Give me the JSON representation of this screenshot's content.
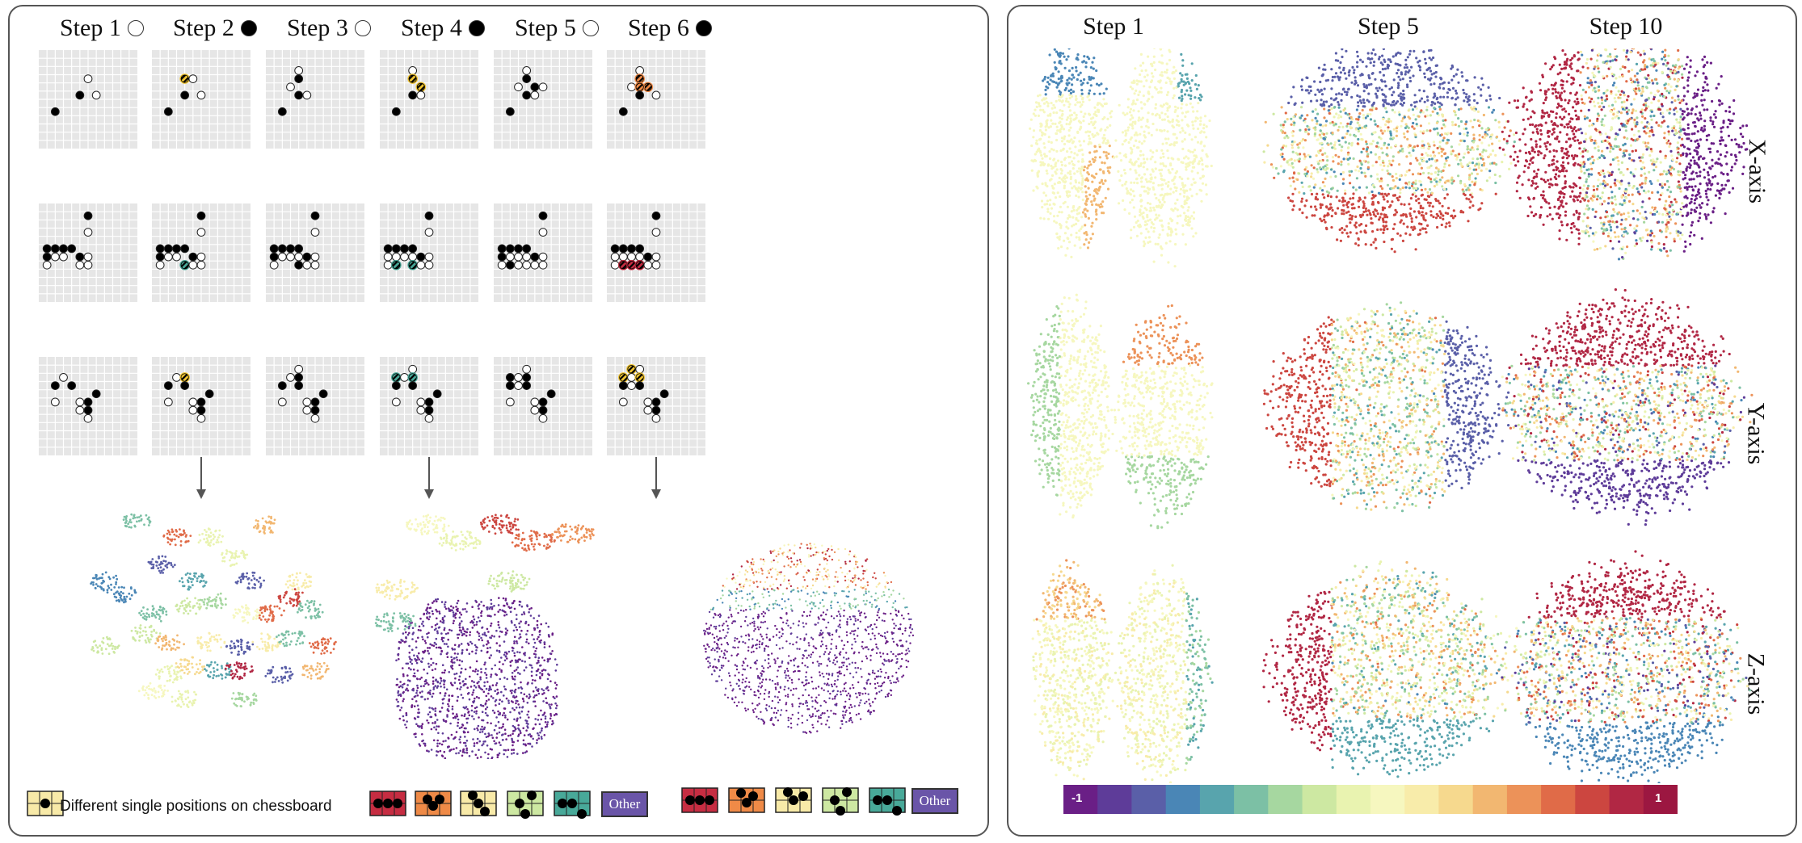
{
  "left": {
    "steps": [
      {
        "label": "Step 1",
        "dot": "white"
      },
      {
        "label": "Step 2",
        "dot": "black"
      },
      {
        "label": "Step 3",
        "dot": "white"
      },
      {
        "label": "Step 4",
        "dot": "black"
      },
      {
        "label": "Step 5",
        "dot": "white"
      },
      {
        "label": "Step 6",
        "dot": "black"
      }
    ],
    "legend": {
      "single_positions_text": "Different single positions on chessboard",
      "other_label_1": "Other",
      "other_label_2": "Other"
    }
  },
  "right": {
    "columns": [
      "Step 1",
      "Step 5",
      "Step 10"
    ],
    "rows": [
      "X-axis",
      "Y-axis",
      "Z-axis"
    ],
    "colorbar": {
      "min_label": "-1",
      "max_label": "1"
    }
  },
  "colors": {
    "board_bg": "#e6e6e6",
    "highlight_yellow": "#f2c531",
    "highlight_teal": "#48a999",
    "highlight_orange": "#ef8a47",
    "highlight_red": "#c62d42",
    "spectral": [
      "#6a1f86",
      "#5e3c99",
      "#5a5fa8",
      "#4a86b6",
      "#58a4ad",
      "#7cc0a5",
      "#a6d7a0",
      "#cde8a2",
      "#e9f3b0",
      "#f6f7bf",
      "#f8ecaa",
      "#f6d98e",
      "#f2b771",
      "#ec9259",
      "#e06b48",
      "#cc4640",
      "#b12744",
      "#9c1741"
    ],
    "other_purple": "#6a55a8"
  }
}
